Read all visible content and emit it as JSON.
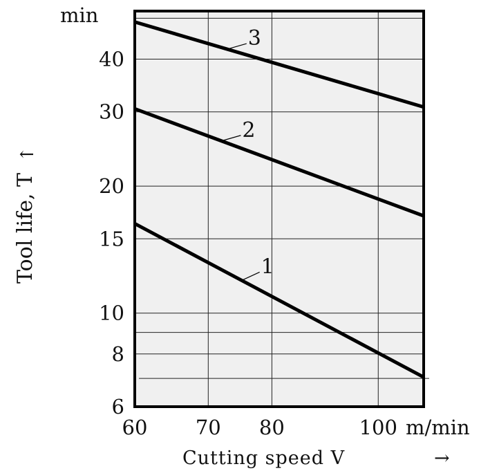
{
  "chart_data": {
    "type": "line",
    "title": "",
    "xlabel": "Cutting speed V",
    "x_arrow": "→",
    "ylabel": "Tool life, T",
    "y_arrow": "↑",
    "x_unit": "m/min",
    "y_unit": "min",
    "x_scale": "log",
    "y_scale": "log",
    "xlim": [
      60,
      110
    ],
    "ylim": [
      6,
      52
    ],
    "x_ticks": [
      60,
      70,
      80,
      100
    ],
    "x_tick_labels": [
      "60",
      "70",
      "80",
      "100"
    ],
    "y_ticks": [
      6,
      8,
      10,
      15,
      20,
      30,
      40
    ],
    "y_tick_labels": [
      "6",
      "8",
      "10",
      "15",
      "20",
      "30",
      "40"
    ],
    "y_gridlines": [
      7,
      8,
      9,
      10,
      15,
      20,
      30,
      40,
      50
    ],
    "grid": true,
    "background": "#f0f0f0",
    "line_color": "#000000",
    "series": [
      {
        "name": "1",
        "x": [
          60,
          110
        ],
        "y": [
          16.3,
          7.05
        ]
      },
      {
        "name": "2",
        "x": [
          60,
          110
        ],
        "y": [
          30.5,
          17.0
        ]
      },
      {
        "name": "3",
        "x": [
          60,
          110
        ],
        "y": [
          49.0,
          30.8
        ]
      }
    ]
  }
}
